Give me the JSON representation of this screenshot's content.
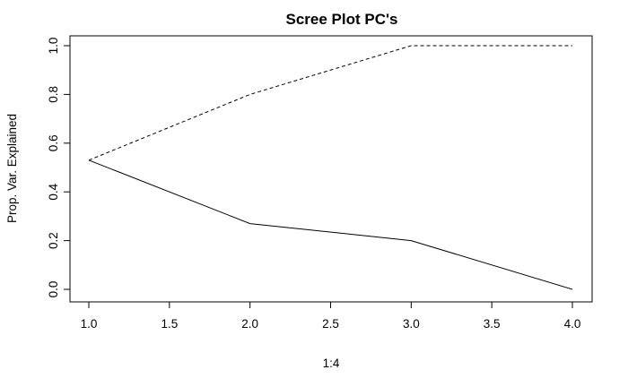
{
  "chart_data": {
    "type": "line",
    "title": "Scree Plot PC's",
    "xlabel": "1:4",
    "ylabel": "Prop. Var. Explained",
    "xlim": [
      1.0,
      4.0
    ],
    "ylim": [
      0.0,
      1.0
    ],
    "x_ticks": [
      "1.0",
      "1.5",
      "2.0",
      "2.5",
      "3.0",
      "3.5",
      "4.0"
    ],
    "y_ticks": [
      "0.0",
      "0.2",
      "0.4",
      "0.6",
      "0.8",
      "1.0"
    ],
    "grid": false,
    "legend": "none",
    "x": [
      1,
      2,
      3,
      4
    ],
    "series": [
      {
        "values": [
          0.53,
          0.27,
          0.2,
          0.0
        ],
        "line_style": "solid",
        "color": "#000000"
      },
      {
        "values": [
          0.53,
          0.8,
          1.0,
          1.0
        ],
        "line_style": "dashed",
        "color": "#000000"
      }
    ]
  }
}
